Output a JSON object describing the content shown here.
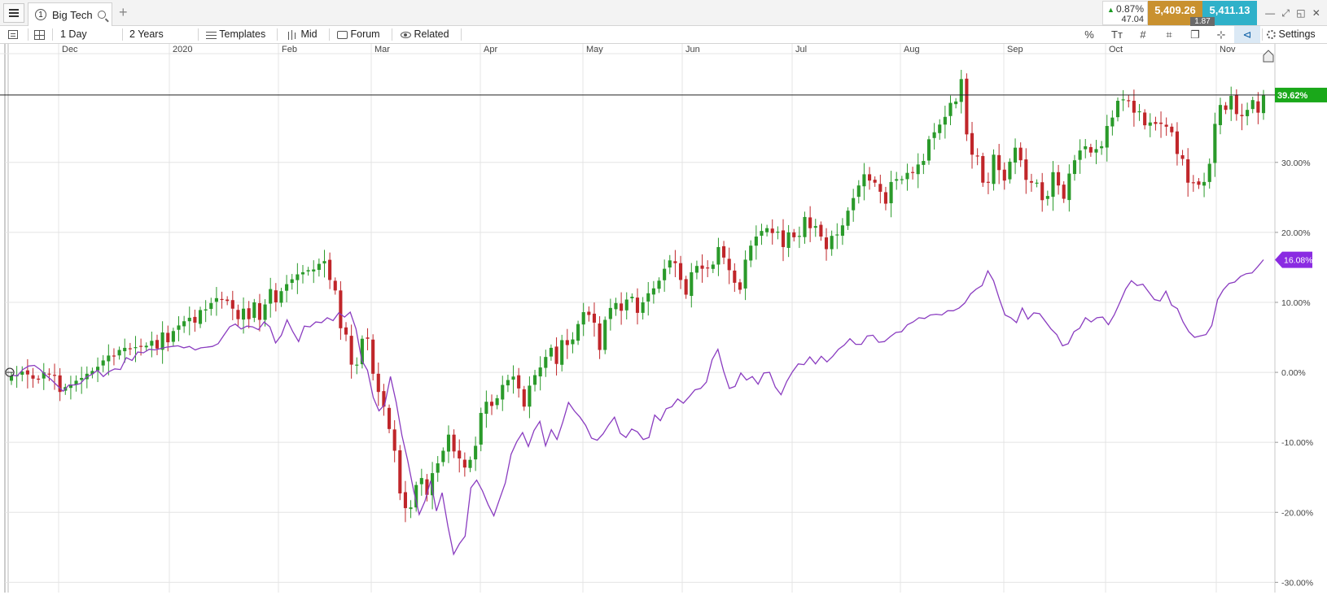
{
  "tabbar": {
    "tab_number": "1",
    "tab_title": "Big Tech",
    "add_tab": "+",
    "change_pct": "0.87%",
    "change_abs": "47.04",
    "bid": "5,409.26",
    "ask": "5,411.13",
    "spread": "1.87"
  },
  "toolbar": {
    "interval": "1 Day",
    "range": "2 Years",
    "templates": "Templates",
    "price_type": "Mid",
    "forum": "Forum",
    "related": "Related",
    "percent_symbol": "%",
    "settings": "Settings"
  },
  "colors": {
    "bullish": "#2a9a2a",
    "bearish": "#c0262a",
    "comparison_line": "#8a3cc0",
    "current_tag": "#1aa81a",
    "comparison_tag": "#8a2be2",
    "bid_bg": "#c9912f",
    "ask_bg": "#2fb1c9"
  },
  "chart_data": {
    "type": "candlestick",
    "month_labels": [
      "Dec",
      "2020",
      "Feb",
      "Mar",
      "Apr",
      "May",
      "Jun",
      "Jul",
      "Aug",
      "Sep",
      "Oct",
      "Nov"
    ],
    "y_tick_labels": [
      "30.00%",
      "20.00%",
      "10.00%",
      "0.00%",
      "-10.00%",
      "-20.00%",
      "-30.00%"
    ],
    "y_ticks": [
      30,
      20,
      10,
      0,
      -10,
      -20,
      -30
    ],
    "ylim": [
      -31,
      46
    ],
    "current_value_label": "39.62%",
    "current_value": 39.62,
    "comparison_value_label": "16.08%",
    "comparison_value": 16.08,
    "candles_close": [
      -0.5,
      -0.4,
      0.1,
      -0.3,
      -0.9,
      -1,
      0,
      -0.3,
      -0.5,
      -2.8,
      -2.1,
      -1.8,
      -1.2,
      -0.8,
      -0.2,
      0.2,
      0.8,
      1.7,
      2.4,
      2.3,
      3.2,
      3.5,
      3.4,
      3.6,
      3.7,
      3.8,
      4.5,
      3.4,
      5.7,
      4.3,
      5.9,
      6.7,
      7.3,
      7.8,
      7.1,
      8.9,
      9,
      9.9,
      10.6,
      10.4,
      10.2,
      9.1,
      7.6,
      9.1,
      7.6,
      10,
      7.5,
      9.7,
      11.9,
      10,
      11.6,
      12.6,
      13.3,
      14,
      14.3,
      14.6,
      14.7,
      15.5,
      15.9,
      13.2,
      11.7,
      6.3,
      5.4,
      1.1,
      1.1,
      4.8,
      4.8,
      -0.2,
      -2.8,
      -4.9,
      -8.1,
      -11.2,
      -17.3,
      -19.4,
      -19.3,
      -16.1,
      -15.1,
      -17.5,
      -14.4,
      -13,
      -11.2,
      -8.9,
      -11.3,
      -12.3,
      -13.6,
      -12.5,
      -10.5,
      -5.8,
      -4.2,
      -4.8,
      -3.7,
      -1.8,
      -1.1,
      -0.6,
      -2.3,
      -4.9,
      -1.9,
      -0.4,
      0.7,
      2.2,
      3.5,
      1.2,
      4.6,
      3.9,
      4.7,
      6.9,
      8.6,
      8.2,
      7.1,
      3.2,
      7.5,
      9.2,
      9.9,
      8.8,
      10.4,
      10.8,
      8.5,
      10,
      11.3,
      12,
      13.1,
      14.8,
      16,
      15.6,
      13.2,
      11.1,
      14.3,
      15.2,
      14.8,
      14.9,
      15.4,
      17.9,
      16.4,
      14.6,
      12.8,
      11.8,
      16.1,
      18.1,
      19.4,
      20.2,
      20.6,
      19.9,
      20.1,
      17.9,
      20,
      19.3,
      19.5,
      22.2,
      20.6,
      20.9,
      19.4,
      17.6,
      19.5,
      19.7,
      21,
      23.1,
      24.9,
      26.7,
      28.3,
      27.4,
      27.1,
      25.8,
      24.1,
      27.2,
      27.6,
      27.6,
      28.5,
      28.5,
      29.7,
      30.2,
      33.3,
      34.3,
      35.4,
      36.5,
      38.5,
      38.7,
      41.9,
      34,
      31.1,
      30.9,
      27.1,
      27.1,
      31.1,
      28.9,
      27.4,
      30.1,
      32.1,
      30.3,
      27.5,
      27.1,
      27.1,
      24.6,
      25.2,
      28.6,
      26.7,
      24.8,
      28.4,
      30.3,
      31.7,
      32.3,
      31.4,
      31.9,
      32.3,
      35.2,
      36.4,
      38.8,
      39,
      38.8,
      37.1,
      37.3,
      35.3,
      35.7,
      35.5,
      35.5,
      35.1,
      34.3,
      31.2,
      30.5,
      27.1,
      27.1,
      26.8,
      27.2,
      29.8,
      35.5,
      38.2,
      37.5,
      39.5,
      36.9,
      36.6,
      37.5,
      38.9,
      37.1,
      39.6
    ],
    "comparison_line": [
      -0.4,
      -0.5,
      0.4,
      0.9,
      1,
      0.4,
      -0.4,
      -1.1,
      -1.9,
      -2.7,
      -1.8,
      -1.8,
      -1.6,
      -0.7,
      -0.3,
      0.3,
      -0.6,
      0.1,
      0.5,
      0.4,
      2.1,
      1.7,
      2.9,
      2.8,
      3.3,
      3.2,
      3.4,
      3.6,
      3.7,
      3.8,
      3.5,
      3.7,
      3.2,
      3.5,
      3.6,
      3.7,
      4.1,
      5.3,
      6.5,
      6.9,
      6.2,
      6.6,
      6.5,
      6.1,
      7.2,
      6.5,
      4.2,
      5.3,
      7.5,
      5.8,
      4.4,
      6.6,
      6.5,
      7.2,
      7.1,
      7.8,
      7.4,
      8.5,
      7.9,
      8.6,
      6.2,
      1.7,
      0.3,
      -3.6,
      -5.5,
      -4.6,
      -0.6,
      -4.3,
      -9,
      -12.6,
      -16.8,
      -20.3,
      -18.4,
      -15.5,
      -19.8,
      -17.2,
      -22,
      -26,
      -24.5,
      -23.4,
      -16.5,
      -15.4,
      -16.9,
      -18.9,
      -20.5,
      -18.1,
      -15.8,
      -11.7,
      -9.9,
      -8.6,
      -10.6,
      -8.3,
      -7,
      -10.5,
      -8.2,
      -9.6,
      -7.1,
      -4.3,
      -5.5,
      -6.4,
      -7.6,
      -9.4,
      -9.7,
      -8.8,
      -7.5,
      -6.4,
      -8.7,
      -9.3,
      -8.1,
      -8.5,
      -9.6,
      -9.3,
      -6.1,
      -6.9,
      -5.2,
      -4.9,
      -3.8,
      -4.4,
      -3.5,
      -2.5,
      -2.3,
      -1.4,
      1.8,
      3.3,
      0.2,
      -2.3,
      -2,
      -0.1,
      -1.1,
      -0.6,
      -1.7,
      -0.1,
      0,
      -2.1,
      -3.2,
      -1.3,
      0.1,
      1.2,
      1.1,
      2.2,
      1.2,
      2.3,
      1.5,
      2.3,
      3.3,
      3.9,
      4.8,
      4,
      4,
      5.2,
      5.3,
      4.3,
      4.4,
      5.1,
      5.7,
      5.8,
      6.8,
      7.2,
      7.8,
      7.7,
      8.2,
      8.3,
      8.2,
      8.8,
      8.8,
      9.2,
      9.9,
      11.2,
      11.9,
      12.4,
      14.5,
      13.1,
      10.5,
      8.2,
      7.8,
      7.1,
      9.2,
      7.6,
      8.5,
      8.4,
      7.3,
      6.2,
      5.4,
      3.8,
      4.1,
      5.8,
      6.3,
      7.8,
      7.2,
      7.8,
      7.9,
      6.8,
      8.2,
      10,
      11.9,
      13.1,
      12.4,
      12.6,
      11.5,
      10.4,
      10.2,
      11.6,
      9.6,
      9.1,
      7.2,
      5.8,
      5,
      5.2,
      5.4,
      6.7,
      10.4,
      11.8,
      12.7,
      12.9,
      13.7,
      14.1,
      14.2,
      15.1,
      16.1
    ]
  }
}
